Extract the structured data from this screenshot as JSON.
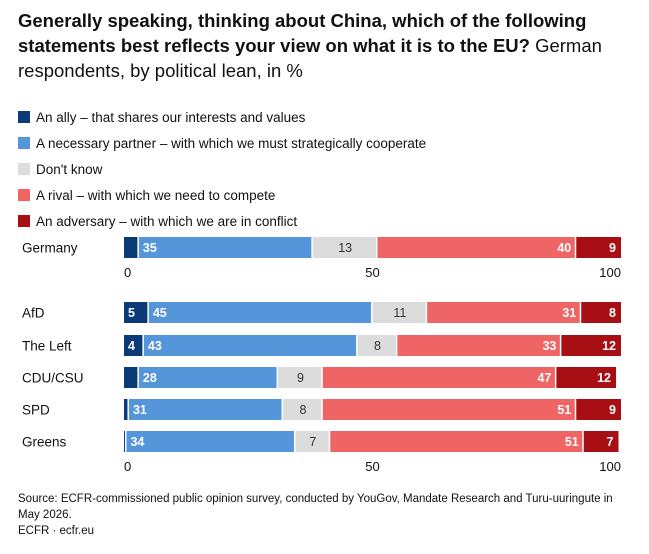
{
  "title": {
    "bold": "Generally speaking, thinking about China, which of the following statements best reflects your view on what it is to the EU?",
    "regular": "German respondents, by political lean, in %"
  },
  "colors": {
    "ally": "#0b3a78",
    "partner": "#5595d9",
    "dontknow": "#dcdcdc",
    "rival": "#ef6464",
    "adversary": "#a80f14"
  },
  "legend": [
    {
      "key": "ally",
      "label": "An ally – that shares our interests and values"
    },
    {
      "key": "partner",
      "label": "A necessary partner – with which we must strategically cooperate"
    },
    {
      "key": "dontknow",
      "label": "Don't know"
    },
    {
      "key": "rival",
      "label": "A rival – with which we need to compete"
    },
    {
      "key": "adversary",
      "label": "An adversary – with which we are in conflict"
    }
  ],
  "chart_data": [
    {
      "type": "bar",
      "orientation": "horizontal",
      "stacked": true,
      "categories": [
        "Germany"
      ],
      "series": [
        {
          "name": "An ally – that shares our interests and values",
          "values": [
            3
          ]
        },
        {
          "name": "A necessary partner – with which we must strategically cooperate",
          "values": [
            35
          ]
        },
        {
          "name": "Don't know",
          "values": [
            13
          ]
        },
        {
          "name": "A rival – with which we need to compete",
          "values": [
            40
          ]
        },
        {
          "name": "An adversary – with which we are in conflict",
          "values": [
            9
          ]
        }
      ],
      "data_labels": [
        [
          "",
          "35",
          "13",
          "40",
          "9"
        ]
      ],
      "xlim": [
        0,
        100
      ],
      "xticks": [
        0,
        50,
        100
      ]
    },
    {
      "type": "bar",
      "orientation": "horizontal",
      "stacked": true,
      "categories": [
        "AfD",
        "The Left",
        "CDU/CSU",
        "SPD",
        "Greens"
      ],
      "series": [
        {
          "name": "An ally – that shares our interests and values",
          "values": [
            5,
            4,
            3,
            1,
            0.5
          ]
        },
        {
          "name": "A necessary partner – with which we must strategically cooperate",
          "values": [
            45,
            43,
            28,
            31,
            34
          ]
        },
        {
          "name": "Don't know",
          "values": [
            11,
            8,
            9,
            8,
            7
          ]
        },
        {
          "name": "A rival – with which we need to compete",
          "values": [
            31,
            33,
            47,
            51,
            51
          ]
        },
        {
          "name": "An adversary – with which we are in conflict",
          "values": [
            8,
            12,
            12,
            9,
            7
          ]
        }
      ],
      "data_labels": [
        [
          "5",
          "45",
          "11",
          "31",
          "8"
        ],
        [
          "4",
          "43",
          "8",
          "33",
          "12"
        ],
        [
          "",
          "28",
          "9",
          "47",
          "12"
        ],
        [
          "",
          "31",
          "8",
          "51",
          "9"
        ],
        [
          "",
          "34",
          "7",
          "51",
          "7"
        ]
      ],
      "xlim": [
        0,
        100
      ],
      "xticks": [
        0,
        50,
        100
      ]
    }
  ],
  "footer": {
    "source": "Source: ECFR-commissioned public opinion survey, conducted by YouGov, Mandate Research and Turu-uuringute in May 2026.",
    "credit": "ECFR · ecfr.eu"
  }
}
